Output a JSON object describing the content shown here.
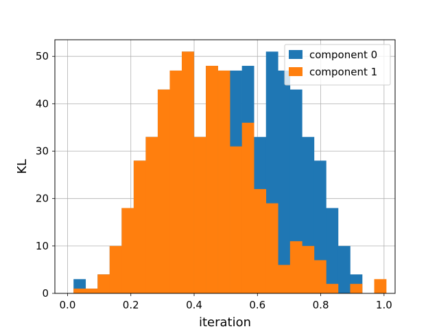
{
  "chart_data": {
    "type": "bar",
    "subtype": "histogram",
    "title": "",
    "xlabel": "iteration",
    "ylabel": "KL",
    "xlim": [
      -0.04,
      1.035
    ],
    "ylim": [
      0,
      53.5
    ],
    "grid": true,
    "legend_position": "top-right",
    "xticks": [
      0.0,
      0.2,
      0.4,
      0.6,
      0.8,
      1.0
    ],
    "xtick_labels": [
      "0.0",
      "0.2",
      "0.4",
      "0.6",
      "0.8",
      "1.0"
    ],
    "yticks": [
      0,
      10,
      20,
      30,
      40,
      50
    ],
    "ytick_labels": [
      "0",
      "10",
      "20",
      "30",
      "40",
      "50"
    ],
    "bin_edges": [
      0.019,
      0.057,
      0.095,
      0.133,
      0.171,
      0.209,
      0.247,
      0.285,
      0.323,
      0.361,
      0.399,
      0.437,
      0.475,
      0.513,
      0.551,
      0.589,
      0.627,
      0.665,
      0.703,
      0.741,
      0.779,
      0.817,
      0.855,
      0.893,
      0.931,
      0.969,
      1.007
    ],
    "series": [
      {
        "name": "component 0",
        "color": "#1f77b4",
        "bin_edges": [
          0.019,
          0.057,
          0.095,
          0.133,
          0.171,
          0.209,
          0.247,
          0.285,
          0.323,
          0.361,
          0.399,
          0.437,
          0.475,
          0.513,
          0.551,
          0.589,
          0.627,
          0.665,
          0.703,
          0.741,
          0.779,
          0.817,
          0.855,
          0.893,
          0.931
        ],
        "values": [
          3,
          1,
          4,
          10,
          18,
          28,
          33,
          43,
          47,
          51,
          33,
          48,
          47,
          47,
          48,
          33,
          51,
          47,
          43,
          33,
          28,
          18,
          10,
          4
        ]
      },
      {
        "name": "component 1",
        "color": "#ff7f0e",
        "bin_edges": [
          0.019,
          0.057,
          0.095,
          0.133,
          0.171,
          0.209,
          0.247,
          0.285,
          0.323,
          0.361,
          0.399,
          0.437,
          0.475,
          0.513,
          0.551,
          0.589,
          0.627,
          0.665,
          0.703,
          0.741,
          0.779,
          0.817,
          0.855,
          0.893,
          0.931,
          0.969,
          1.007
        ],
        "values": [
          1,
          1,
          4,
          10,
          18,
          28,
          33,
          43,
          47,
          51,
          33,
          48,
          47,
          31,
          36,
          22,
          19,
          6,
          11,
          10,
          7,
          2,
          0,
          2,
          0,
          3
        ]
      }
    ]
  }
}
